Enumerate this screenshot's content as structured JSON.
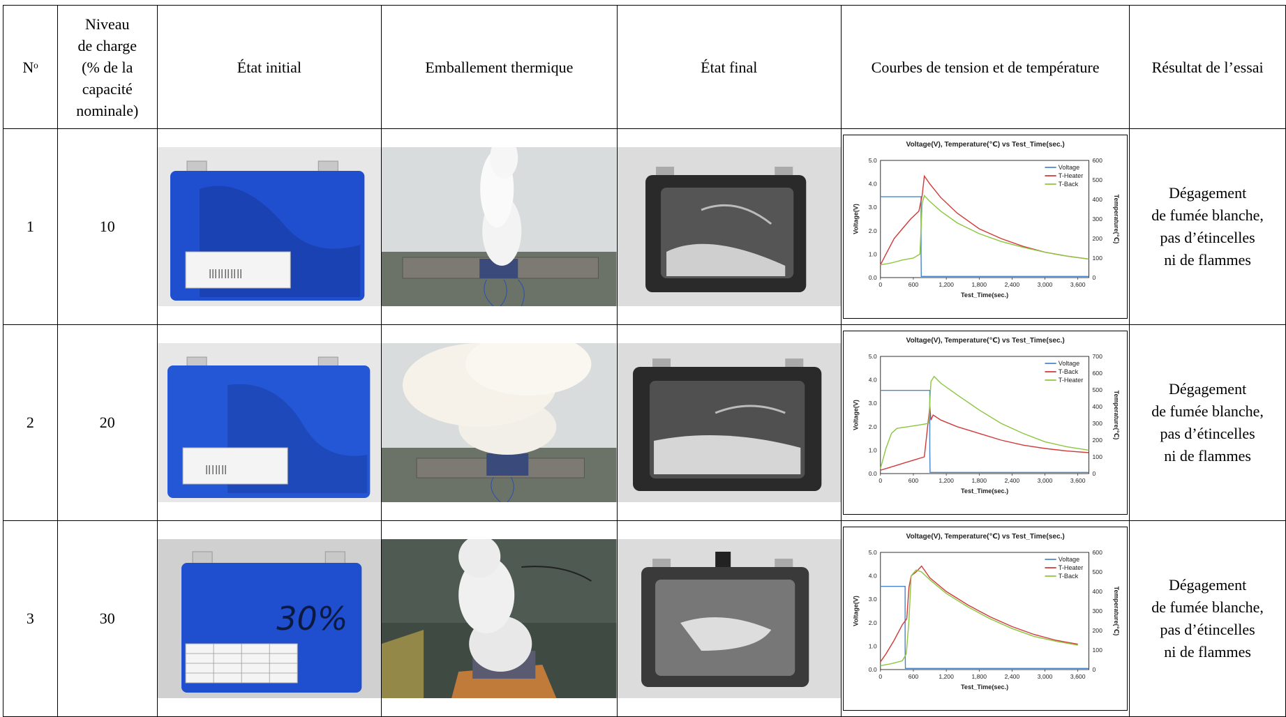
{
  "headers": {
    "no": "Nᵒ",
    "soc_lines": [
      "Niveau",
      "de charge",
      "(% de la",
      "capacité",
      "nominale)"
    ],
    "initial": "État initial",
    "runaway": "Emballement thermique",
    "final": "État final",
    "curves": "Courbes de tension et de température",
    "result": "Résultat de l’essai"
  },
  "rows": [
    {
      "no": "1",
      "soc": "10",
      "result_lines": [
        "Dégagement",
        "de fumée blanche,",
        "pas d’étincelles",
        "ni de flammes"
      ]
    },
    {
      "no": "2",
      "soc": "20",
      "result_lines": [
        "Dégagement",
        "de fumée blanche,",
        "pas d’étincelles",
        "ni de flammes"
      ]
    },
    {
      "no": "3",
      "soc": "30",
      "result_lines": [
        "Dégagement",
        "de fumée blanche,",
        "pas d’étincelles",
        "ni de flammes"
      ],
      "cell_marking": "30%"
    }
  ],
  "colors": {
    "voltage": "#4a86c8",
    "red_series": "#d13a3a",
    "green_series": "#8cc63f",
    "cell_blue": "#1f4ecf"
  },
  "chart_data": [
    {
      "type": "line",
      "title": "Voltage(V), Temperature(℃) vs Test_Time(sec.)",
      "xlabel": "Test_Time(sec.)",
      "ylabel": "Voltage(V)",
      "y2label": "Temperature(℃)",
      "xlim": [
        0,
        3800
      ],
      "ylim": [
        0,
        5
      ],
      "y2lim": [
        0,
        600
      ],
      "x_ticks": [
        "0",
        "600",
        "1,200",
        "1,800",
        "2,400",
        "3,000",
        "3,600"
      ],
      "y_ticks": [
        "0.0",
        "1.0",
        "2.0",
        "3.0",
        "4.0",
        "5.0"
      ],
      "y2_ticks": [
        "0",
        "100",
        "200",
        "300",
        "400",
        "500",
        "600"
      ],
      "legend_position": "top-right",
      "series": [
        {
          "name": "Voltage",
          "axis": "left",
          "color_key": "voltage",
          "x": [
            0,
            740,
            740,
            745,
            3800
          ],
          "y": [
            3.45,
            3.45,
            1.0,
            0.05,
            0.05
          ]
        },
        {
          "name": "T-Heater",
          "axis": "right",
          "color_key": "red_series",
          "x": [
            0,
            100,
            250,
            400,
            550,
            700,
            760,
            800,
            900,
            1100,
            1400,
            1800,
            2200,
            2600,
            3000,
            3400,
            3800
          ],
          "y": [
            65,
            120,
            200,
            250,
            300,
            340,
            420,
            520,
            480,
            410,
            330,
            250,
            200,
            160,
            130,
            110,
            95
          ]
        },
        {
          "name": "T-Back",
          "axis": "right",
          "color_key": "green_series",
          "x": [
            0,
            200,
            400,
            600,
            720,
            760,
            800,
            900,
            1100,
            1400,
            1800,
            2200,
            2600,
            3000,
            3400,
            3800
          ],
          "y": [
            65,
            75,
            90,
            100,
            120,
            380,
            420,
            390,
            340,
            280,
            225,
            185,
            155,
            130,
            110,
            95
          ]
        }
      ]
    },
    {
      "type": "line",
      "title": "Voltage(V), Temperature(℃) vs Test_Time(sec.)",
      "xlabel": "Test_Time(sec.)",
      "ylabel": "Voltage(V)",
      "y2label": "Temperature(℃)",
      "xlim": [
        0,
        3800
      ],
      "ylim": [
        0,
        5
      ],
      "y2lim": [
        0,
        700
      ],
      "x_ticks": [
        "0",
        "600",
        "1,200",
        "1,800",
        "2,400",
        "3,000",
        "3,600"
      ],
      "y_ticks": [
        "0.0",
        "1.0",
        "2.0",
        "3.0",
        "4.0",
        "5.0"
      ],
      "y2_ticks": [
        "0",
        "100",
        "200",
        "300",
        "400",
        "500",
        "600",
        "700"
      ],
      "legend_position": "top-right",
      "series": [
        {
          "name": "Voltage",
          "axis": "left",
          "color_key": "voltage",
          "x": [
            0,
            900,
            900,
            905,
            3800
          ],
          "y": [
            3.55,
            3.55,
            1.0,
            0.05,
            0.05
          ]
        },
        {
          "name": "T-Back",
          "axis": "right",
          "color_key": "red_series",
          "x": [
            0,
            200,
            400,
            600,
            800,
            900,
            920,
            960,
            1100,
            1400,
            1800,
            2200,
            2600,
            3000,
            3400,
            3800
          ],
          "y": [
            20,
            40,
            60,
            80,
            100,
            400,
            320,
            350,
            320,
            280,
            240,
            200,
            170,
            150,
            135,
            125
          ]
        },
        {
          "name": "T-Heater",
          "axis": "right",
          "color_key": "green_series",
          "x": [
            0,
            100,
            200,
            300,
            500,
            700,
            880,
            920,
            980,
            1100,
            1400,
            1800,
            2200,
            2600,
            3000,
            3400,
            3800
          ],
          "y": [
            30,
            150,
            240,
            270,
            280,
            290,
            300,
            550,
            580,
            540,
            470,
            380,
            300,
            240,
            190,
            160,
            140
          ]
        }
      ]
    },
    {
      "type": "line",
      "title": "Voltage(V), Temperature(℃) vs Test_Time(sec.)",
      "xlabel": "Test_Time(sec.)",
      "ylabel": "Voltage(V)",
      "y2label": "Temperature(℃)",
      "xlim": [
        0,
        3800
      ],
      "ylim": [
        0,
        5
      ],
      "y2lim": [
        0,
        600
      ],
      "x_ticks": [
        "0",
        "600",
        "1,200",
        "1,800",
        "2,400",
        "3,000",
        "3,600"
      ],
      "y_ticks": [
        "0.0",
        "1.0",
        "2.0",
        "3.0",
        "4.0",
        "5.0"
      ],
      "y2_ticks": [
        "0",
        "100",
        "200",
        "300",
        "400",
        "500",
        "600"
      ],
      "legend_position": "top-right",
      "series": [
        {
          "name": "Voltage",
          "axis": "left",
          "color_key": "voltage",
          "x": [
            0,
            450,
            450,
            455,
            3800
          ],
          "y": [
            3.55,
            3.55,
            1.0,
            0.05,
            0.05
          ]
        },
        {
          "name": "T-Heater",
          "axis": "right",
          "color_key": "red_series",
          "x": [
            0,
            100,
            250,
            400,
            480,
            520,
            560,
            650,
            750,
            900,
            1200,
            1600,
            2000,
            2400,
            2800,
            3200,
            3600
          ],
          "y": [
            40,
            80,
            150,
            230,
            260,
            420,
            480,
            500,
            530,
            470,
            400,
            330,
            270,
            220,
            180,
            150,
            130
          ]
        },
        {
          "name": "T-Back",
          "axis": "right",
          "color_key": "green_series",
          "x": [
            0,
            200,
            400,
            470,
            520,
            560,
            650,
            750,
            900,
            1200,
            1600,
            2000,
            2400,
            2800,
            3200,
            3600
          ],
          "y": [
            20,
            30,
            45,
            80,
            250,
            480,
            510,
            500,
            460,
            390,
            320,
            260,
            210,
            170,
            145,
            125
          ]
        }
      ]
    }
  ]
}
